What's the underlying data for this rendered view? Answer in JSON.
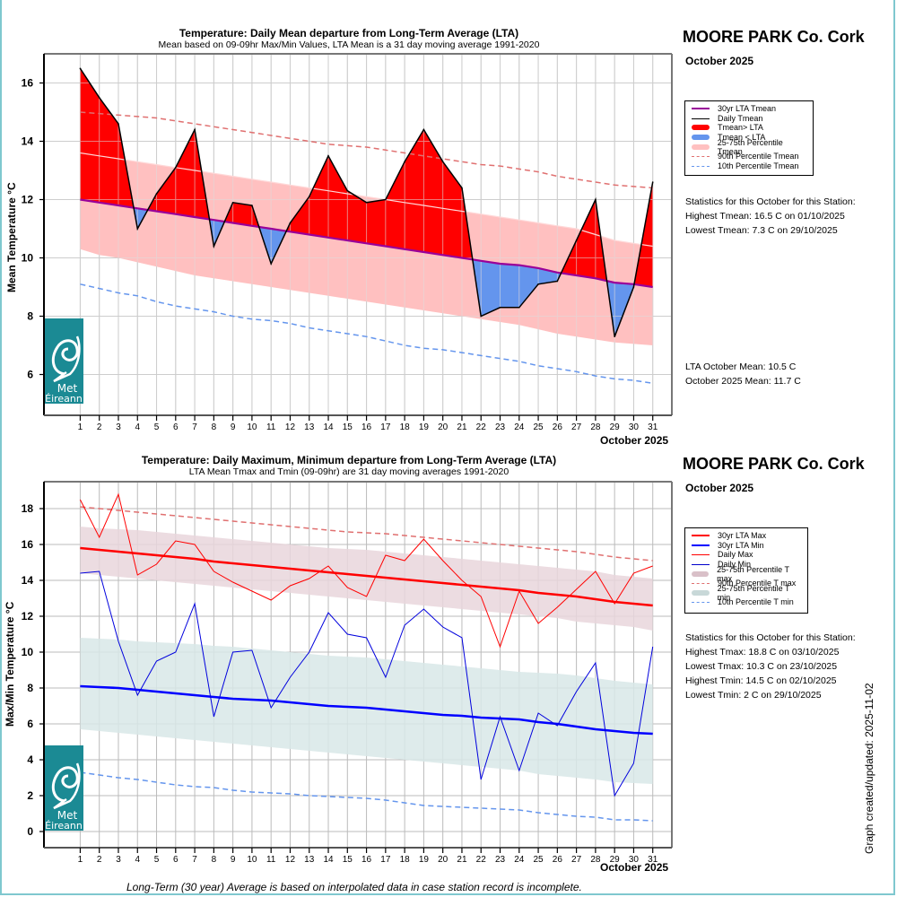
{
  "page": {
    "updated": "Graph created/updated:  2025-11-02",
    "footnote": "Long-Term (30 year) Average is based on interpolated data in case station record is incomplete.",
    "logo_line1": "Met",
    "logo_line2": "Éireann"
  },
  "upper": {
    "station": "MOORE PARK Co. Cork",
    "month": "October 2025",
    "legend": [
      {
        "label": "30yr LTA Tmean",
        "color": "#990099",
        "style": "line-thick"
      },
      {
        "label": "Daily Tmean",
        "color": "#000000",
        "style": "line"
      },
      {
        "label": "Tmean> LTA",
        "color": "#ff0000",
        "style": "bar"
      },
      {
        "label": "Tmean < LTA",
        "color": "#6495ed",
        "style": "bar"
      },
      {
        "label": "25-75th Percentile Tmean",
        "color": "#ffc0c0",
        "style": "bar"
      },
      {
        "label": "90th Percentile Tmean",
        "color": "#e07070",
        "style": "dash"
      },
      {
        "label": "10th Percentile Tmean",
        "color": "#6495ed",
        "style": "dash"
      }
    ],
    "stats_header": "Statistics for this October for this Station:",
    "stats": [
      "Highest Tmean: 16.5 C on 01/10/2025",
      "Lowest Tmean: 7.3 C on 29/10/2025"
    ],
    "means": [
      "LTA October Mean: 10.5 C",
      "October 2025 Mean: 11.7 C"
    ]
  },
  "lower": {
    "station": "MOORE PARK Co. Cork",
    "month": "October 2025",
    "legend": [
      {
        "label": "30yr LTA Max",
        "color": "#ff0000",
        "style": "line-thick"
      },
      {
        "label": "30yr LTA Min",
        "color": "#0000ff",
        "style": "line-thick"
      },
      {
        "label": "Daily Max",
        "color": "#ff0000",
        "style": "line"
      },
      {
        "label": "Daily Min",
        "color": "#0000cc",
        "style": "line"
      },
      {
        "label": "25-75th Percentile T max",
        "color": "#d9c0c8",
        "style": "bar"
      },
      {
        "label": "90th Percentile T max",
        "color": "#e07070",
        "style": "dash"
      },
      {
        "label": "25-75th Percentile T min",
        "color": "#c8d8d8",
        "style": "bar"
      },
      {
        "label": "10th Percentile T min",
        "color": "#6495ed",
        "style": "dash"
      }
    ],
    "stats_header": "Statistics for this October for this Station:",
    "stats": [
      "Highest Tmax: 18.8 C on 03/10/2025",
      "Lowest Tmax: 10.3 C on 23/10/2025",
      "Highest Tmin: 14.5 C on 02/10/2025",
      "Lowest Tmin: 2 C on 29/10/2025"
    ]
  },
  "chart_data": [
    {
      "type": "area",
      "title": "Temperature: Daily Mean departure from Long-Term Average (LTA)",
      "subtitle": "Mean based on 09-09hr Max/Min Values, LTA Mean is a 31 day moving average 1991-2020",
      "xlabel": "October 2025",
      "ylabel": "Mean Temperature °C",
      "x": [
        1,
        2,
        3,
        4,
        5,
        6,
        7,
        8,
        9,
        10,
        11,
        12,
        13,
        14,
        15,
        16,
        17,
        18,
        19,
        20,
        21,
        22,
        23,
        24,
        25,
        26,
        27,
        28,
        29,
        30,
        31
      ],
      "xlim": [
        -0.9,
        32
      ],
      "ylim": [
        4.6,
        17
      ],
      "yticks": [
        6,
        8,
        10,
        12,
        14,
        16
      ],
      "grid": true,
      "series": [
        {
          "name": "Daily Tmean",
          "values": [
            16.5,
            15.5,
            14.6,
            11.0,
            12.2,
            13.1,
            14.4,
            10.4,
            11.9,
            11.8,
            9.8,
            11.2,
            12.1,
            13.5,
            12.3,
            11.9,
            12.0,
            13.3,
            14.4,
            13.3,
            12.4,
            8.0,
            8.3,
            8.3,
            9.1,
            9.2,
            10.6,
            12.0,
            7.3,
            9.0,
            12.6
          ]
        },
        {
          "name": "30yr LTA Tmean",
          "values": [
            12.0,
            11.9,
            11.8,
            11.7,
            11.6,
            11.5,
            11.4,
            11.3,
            11.2,
            11.1,
            11.0,
            10.9,
            10.8,
            10.7,
            10.6,
            10.5,
            10.4,
            10.3,
            10.2,
            10.1,
            10.0,
            9.9,
            9.8,
            9.75,
            9.65,
            9.5,
            9.4,
            9.3,
            9.15,
            9.1,
            9.0
          ]
        },
        {
          "name": "75th Percentile Tmean",
          "values": [
            13.6,
            13.5,
            13.4,
            13.3,
            13.2,
            13.1,
            13.0,
            12.9,
            12.8,
            12.7,
            12.6,
            12.5,
            12.4,
            12.3,
            12.2,
            12.1,
            12.0,
            11.9,
            11.8,
            11.7,
            11.6,
            11.5,
            11.4,
            11.3,
            11.2,
            11.1,
            11.0,
            10.8,
            10.6,
            10.5,
            10.4
          ]
        },
        {
          "name": "25th Percentile Tmean",
          "values": [
            10.3,
            10.1,
            10.0,
            9.85,
            9.7,
            9.55,
            9.4,
            9.3,
            9.2,
            9.1,
            9.0,
            8.9,
            8.8,
            8.7,
            8.6,
            8.5,
            8.4,
            8.3,
            8.2,
            8.1,
            8.0,
            7.9,
            7.8,
            7.7,
            7.55,
            7.4,
            7.3,
            7.2,
            7.1,
            7.05,
            7.0
          ]
        },
        {
          "name": "90th Percentile Tmean",
          "values": [
            15.0,
            14.95,
            14.9,
            14.85,
            14.8,
            14.7,
            14.6,
            14.5,
            14.4,
            14.3,
            14.2,
            14.1,
            14.0,
            13.9,
            13.85,
            13.8,
            13.7,
            13.6,
            13.5,
            13.4,
            13.3,
            13.2,
            13.15,
            13.05,
            12.95,
            12.8,
            12.7,
            12.6,
            12.5,
            12.45,
            12.4
          ]
        },
        {
          "name": "10th Percentile Tmean",
          "values": [
            9.1,
            8.95,
            8.8,
            8.7,
            8.5,
            8.35,
            8.25,
            8.15,
            8.0,
            7.9,
            7.85,
            7.75,
            7.6,
            7.5,
            7.4,
            7.3,
            7.15,
            7.0,
            6.9,
            6.85,
            6.75,
            6.65,
            6.55,
            6.45,
            6.3,
            6.2,
            6.1,
            5.95,
            5.85,
            5.8,
            5.7
          ]
        }
      ]
    },
    {
      "type": "line",
      "title": "Temperature: Daily Maximum, Minimum departure from Long-Term Average (LTA)",
      "subtitle": "LTA Mean Tmax and Tmin (09-09hr) are 31 day moving averages 1991-2020",
      "xlabel": "October 2025",
      "ylabel": "Max/Min Temperature °C",
      "x": [
        1,
        2,
        3,
        4,
        5,
        6,
        7,
        8,
        9,
        10,
        11,
        12,
        13,
        14,
        15,
        16,
        17,
        18,
        19,
        20,
        21,
        22,
        23,
        24,
        25,
        26,
        27,
        28,
        29,
        30,
        31
      ],
      "xlim": [
        -0.9,
        32
      ],
      "ylim": [
        -0.9,
        19.5
      ],
      "yticks": [
        0,
        2,
        4,
        6,
        8,
        10,
        12,
        14,
        16,
        18
      ],
      "grid": true,
      "series": [
        {
          "name": "Daily Max",
          "values": [
            18.5,
            16.4,
            18.8,
            14.3,
            14.9,
            16.2,
            16.0,
            14.5,
            13.9,
            13.4,
            12.9,
            13.7,
            14.1,
            14.8,
            13.6,
            13.1,
            15.4,
            15.1,
            16.3,
            15.1,
            14.0,
            13.1,
            10.3,
            13.4,
            11.6,
            12.5,
            13.5,
            14.5,
            12.7,
            14.4,
            14.8
          ]
        },
        {
          "name": "Daily Min",
          "values": [
            14.4,
            14.5,
            10.6,
            7.6,
            9.5,
            10.0,
            12.7,
            6.4,
            10.0,
            10.1,
            6.9,
            8.6,
            10.0,
            12.2,
            11.0,
            10.8,
            8.6,
            11.5,
            12.4,
            11.4,
            10.8,
            2.9,
            6.4,
            3.4,
            6.6,
            5.9,
            7.8,
            9.4,
            2.0,
            3.8,
            10.3
          ]
        },
        {
          "name": "30yr LTA Max",
          "values": [
            15.8,
            15.7,
            15.6,
            15.5,
            15.4,
            15.3,
            15.2,
            15.05,
            14.95,
            14.85,
            14.75,
            14.65,
            14.55,
            14.45,
            14.35,
            14.25,
            14.15,
            14.05,
            13.95,
            13.85,
            13.75,
            13.65,
            13.55,
            13.45,
            13.3,
            13.2,
            13.1,
            12.95,
            12.8,
            12.7,
            12.6
          ]
        },
        {
          "name": "30yr LTA Min",
          "values": [
            8.1,
            8.05,
            8.0,
            7.9,
            7.8,
            7.7,
            7.6,
            7.5,
            7.4,
            7.35,
            7.3,
            7.2,
            7.1,
            7.0,
            6.95,
            6.9,
            6.8,
            6.7,
            6.6,
            6.5,
            6.45,
            6.35,
            6.3,
            6.25,
            6.1,
            6.0,
            5.85,
            5.7,
            5.6,
            5.5,
            5.45
          ]
        },
        {
          "name": "75th Percentile T max",
          "values": [
            17.0,
            16.9,
            16.85,
            16.8,
            16.7,
            16.6,
            16.5,
            16.4,
            16.3,
            16.2,
            16.1,
            16.0,
            15.9,
            15.8,
            15.75,
            15.7,
            15.6,
            15.5,
            15.4,
            15.3,
            15.2,
            15.1,
            15.0,
            14.9,
            14.8,
            14.7,
            14.6,
            14.5,
            14.3,
            14.2,
            14.1
          ]
        },
        {
          "name": "25th Percentile T max",
          "values": [
            14.4,
            14.3,
            14.2,
            14.1,
            14.0,
            13.9,
            13.8,
            13.7,
            13.6,
            13.5,
            13.4,
            13.3,
            13.2,
            13.1,
            13.0,
            12.9,
            12.8,
            12.7,
            12.6,
            12.5,
            12.4,
            12.3,
            12.2,
            12.1,
            12.0,
            11.9,
            11.7,
            11.6,
            11.5,
            11.4,
            11.2
          ]
        },
        {
          "name": "90th Percentile T max",
          "values": [
            18.1,
            18.0,
            17.9,
            17.8,
            17.7,
            17.6,
            17.5,
            17.4,
            17.3,
            17.2,
            17.1,
            17.0,
            16.9,
            16.8,
            16.7,
            16.65,
            16.6,
            16.5,
            16.4,
            16.3,
            16.2,
            16.1,
            16.0,
            15.9,
            15.8,
            15.7,
            15.6,
            15.45,
            15.3,
            15.2,
            15.1
          ]
        },
        {
          "name": "75th Percentile T min",
          "values": [
            10.8,
            10.75,
            10.7,
            10.6,
            10.55,
            10.5,
            10.45,
            10.35,
            10.3,
            10.2,
            10.1,
            10.0,
            9.9,
            9.8,
            9.75,
            9.7,
            9.6,
            9.5,
            9.4,
            9.3,
            9.2,
            9.1,
            9.0,
            8.9,
            8.85,
            8.8,
            8.7,
            8.55,
            8.4,
            8.3,
            8.2
          ]
        },
        {
          "name": "25th Percentile T min",
          "values": [
            5.7,
            5.6,
            5.5,
            5.4,
            5.3,
            5.2,
            5.1,
            5.0,
            4.9,
            4.8,
            4.7,
            4.6,
            4.5,
            4.4,
            4.3,
            4.2,
            4.1,
            4.0,
            3.9,
            3.8,
            3.7,
            3.6,
            3.5,
            3.4,
            3.2,
            3.1,
            3.0,
            2.9,
            2.75,
            2.7,
            2.65
          ]
        },
        {
          "name": "10th Percentile T min",
          "values": [
            3.3,
            3.15,
            3.0,
            2.9,
            2.75,
            2.6,
            2.5,
            2.45,
            2.3,
            2.2,
            2.15,
            2.1,
            2.0,
            1.95,
            1.9,
            1.85,
            1.75,
            1.6,
            1.45,
            1.4,
            1.35,
            1.3,
            1.25,
            1.2,
            1.05,
            0.95,
            0.85,
            0.8,
            0.65,
            0.65,
            0.6
          ]
        }
      ]
    }
  ]
}
